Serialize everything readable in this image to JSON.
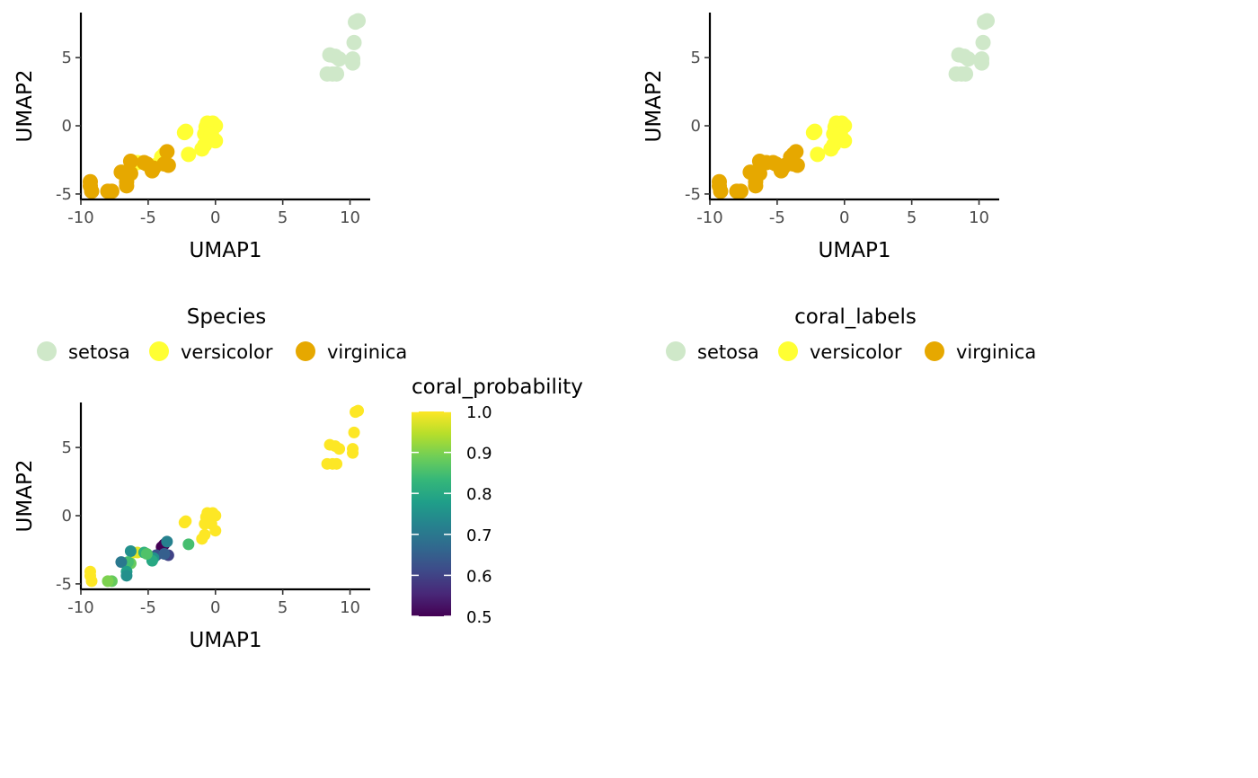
{
  "colors": {
    "setosa": "#cfe8c9",
    "versicolor": "#ffff33",
    "virginica": "#e6a800"
  },
  "viridis": [
    "#440154",
    "#482878",
    "#3e4a89",
    "#31688e",
    "#26828e",
    "#1f9e89",
    "#35b779",
    "#6ece58",
    "#b5de2b",
    "#fde725"
  ],
  "chart_data": [
    {
      "type": "scatter",
      "id": "species",
      "xlabel": "UMAP1",
      "ylabel": "UMAP2",
      "xlim": [
        -10,
        11.5
      ],
      "ylim": [
        -5.4,
        8.3
      ],
      "xticks": [
        -10,
        -5,
        0,
        5,
        10
      ],
      "yticks": [
        -5,
        0,
        5
      ],
      "grid": false,
      "legend": {
        "title": "Species",
        "position": "bottom",
        "entries": [
          "setosa",
          "versicolor",
          "virginica"
        ]
      }
    },
    {
      "type": "scatter",
      "id": "coral_labels",
      "xlabel": "UMAP1",
      "ylabel": "UMAP2",
      "xlim": [
        -10,
        11.5
      ],
      "ylim": [
        -5.4,
        8.3
      ],
      "xticks": [
        -10,
        -5,
        0,
        5,
        10
      ],
      "yticks": [
        -5,
        0,
        5
      ],
      "grid": false,
      "legend": {
        "title": "coral_labels",
        "position": "bottom",
        "entries": [
          "setosa",
          "versicolor",
          "virginica"
        ]
      }
    },
    {
      "type": "scatter",
      "id": "coral_probability",
      "xlabel": "UMAP1",
      "ylabel": "UMAP2",
      "xlim": [
        -10,
        11.5
      ],
      "ylim": [
        -5.4,
        8.3
      ],
      "xticks": [
        -10,
        -5,
        0,
        5,
        10
      ],
      "yticks": [
        -5,
        0,
        5
      ],
      "grid": false,
      "legend": {
        "title": "coral_probability",
        "position": "right",
        "type": "colorbar",
        "range": [
          0.5,
          1.0
        ],
        "ticks": [
          "1.0",
          "0.9",
          "0.8",
          "0.7",
          "0.6",
          "0.5"
        ]
      }
    }
  ],
  "points": [
    {
      "x": 10.4,
      "y": 7.6,
      "species": "setosa",
      "label": "setosa",
      "prob": 1.0
    },
    {
      "x": 10.6,
      "y": 7.7,
      "species": "setosa",
      "label": "setosa",
      "prob": 1.0
    },
    {
      "x": 10.3,
      "y": 6.1,
      "species": "setosa",
      "label": "setosa",
      "prob": 1.0
    },
    {
      "x": 8.5,
      "y": 5.2,
      "species": "setosa",
      "label": "setosa",
      "prob": 1.0
    },
    {
      "x": 8.9,
      "y": 5.1,
      "species": "setosa",
      "label": "setosa",
      "prob": 1.0
    },
    {
      "x": 9.2,
      "y": 4.9,
      "species": "setosa",
      "label": "setosa",
      "prob": 1.0
    },
    {
      "x": 10.2,
      "y": 4.9,
      "species": "setosa",
      "label": "setosa",
      "prob": 1.0
    },
    {
      "x": 10.2,
      "y": 4.6,
      "species": "setosa",
      "label": "setosa",
      "prob": 1.0
    },
    {
      "x": 8.3,
      "y": 3.8,
      "species": "setosa",
      "label": "setosa",
      "prob": 1.0
    },
    {
      "x": 8.7,
      "y": 3.8,
      "species": "setosa",
      "label": "setosa",
      "prob": 1.0
    },
    {
      "x": 9.0,
      "y": 3.8,
      "species": "setosa",
      "label": "setosa",
      "prob": 1.0
    },
    {
      "x": -0.6,
      "y": 0.2,
      "species": "versicolor",
      "label": "versicolor",
      "prob": 1.0
    },
    {
      "x": -0.2,
      "y": 0.2,
      "species": "versicolor",
      "label": "versicolor",
      "prob": 1.0
    },
    {
      "x": 0.0,
      "y": 0.0,
      "species": "versicolor",
      "label": "versicolor",
      "prob": 1.0
    },
    {
      "x": -0.7,
      "y": -0.1,
      "species": "versicolor",
      "label": "versicolor",
      "prob": 1.0
    },
    {
      "x": -2.2,
      "y": -0.4,
      "species": "versicolor",
      "label": "versicolor",
      "prob": 1.0
    },
    {
      "x": -2.3,
      "y": -0.5,
      "species": "versicolor",
      "label": "versicolor",
      "prob": 1.0
    },
    {
      "x": -0.8,
      "y": -0.6,
      "species": "versicolor",
      "label": "versicolor",
      "prob": 1.0
    },
    {
      "x": -0.3,
      "y": -0.6,
      "species": "versicolor",
      "label": "versicolor",
      "prob": 1.0
    },
    {
      "x": 0.0,
      "y": -1.1,
      "species": "versicolor",
      "label": "versicolor",
      "prob": 1.0
    },
    {
      "x": -0.8,
      "y": -1.4,
      "species": "versicolor",
      "label": "versicolor",
      "prob": 1.0
    },
    {
      "x": -1.0,
      "y": -1.7,
      "species": "versicolor",
      "label": "versicolor",
      "prob": 1.0
    },
    {
      "x": -2.0,
      "y": -2.1,
      "species": "versicolor",
      "label": "versicolor",
      "prob": 0.85
    },
    {
      "x": -3.8,
      "y": -2.1,
      "species": "versicolor",
      "label": "virginica",
      "prob": 0.5
    },
    {
      "x": -4.0,
      "y": -2.3,
      "species": "versicolor",
      "label": "virginica",
      "prob": 0.5
    },
    {
      "x": -4.4,
      "y": -2.9,
      "species": "versicolor",
      "label": "virginica",
      "prob": 0.62
    },
    {
      "x": -5.8,
      "y": -2.7,
      "species": "versicolor",
      "label": "virginica",
      "prob": 0.98
    },
    {
      "x": -6.1,
      "y": -2.7,
      "species": "versicolor",
      "label": "virginica",
      "prob": 0.98
    },
    {
      "x": -3.6,
      "y": -1.9,
      "species": "virginica",
      "label": "virginica",
      "prob": 0.72
    },
    {
      "x": -3.5,
      "y": -2.9,
      "species": "virginica",
      "label": "virginica",
      "prob": 0.6
    },
    {
      "x": -3.8,
      "y": -2.8,
      "species": "virginica",
      "label": "virginica",
      "prob": 0.65
    },
    {
      "x": -4.6,
      "y": -3.1,
      "species": "virginica",
      "label": "virginica",
      "prob": 0.75
    },
    {
      "x": -4.7,
      "y": -3.3,
      "species": "virginica",
      "label": "virginica",
      "prob": 0.8
    },
    {
      "x": -5.3,
      "y": -2.7,
      "species": "virginica",
      "label": "virginica",
      "prob": 0.82
    },
    {
      "x": -5.1,
      "y": -2.8,
      "species": "virginica",
      "label": "virginica",
      "prob": 0.86
    },
    {
      "x": -6.3,
      "y": -2.6,
      "species": "virginica",
      "label": "virginica",
      "prob": 0.75
    },
    {
      "x": -6.3,
      "y": -3.5,
      "species": "virginica",
      "label": "virginica",
      "prob": 0.88
    },
    {
      "x": -6.5,
      "y": -3.4,
      "species": "virginica",
      "label": "virginica",
      "prob": 0.85
    },
    {
      "x": -7.0,
      "y": -3.4,
      "species": "virginica",
      "label": "virginica",
      "prob": 0.7
    },
    {
      "x": -6.6,
      "y": -4.1,
      "species": "virginica",
      "label": "virginica",
      "prob": 0.78
    },
    {
      "x": -6.6,
      "y": -4.4,
      "species": "virginica",
      "label": "virginica",
      "prob": 0.75
    },
    {
      "x": -7.7,
      "y": -4.8,
      "species": "virginica",
      "label": "virginica",
      "prob": 0.88
    },
    {
      "x": -8.0,
      "y": -4.8,
      "species": "virginica",
      "label": "virginica",
      "prob": 0.9
    },
    {
      "x": -9.3,
      "y": -4.1,
      "species": "virginica",
      "label": "virginica",
      "prob": 1.0
    },
    {
      "x": -9.3,
      "y": -4.4,
      "species": "virginica",
      "label": "virginica",
      "prob": 1.0
    },
    {
      "x": -9.2,
      "y": -4.8,
      "species": "virginica",
      "label": "virginica",
      "prob": 1.0
    }
  ]
}
